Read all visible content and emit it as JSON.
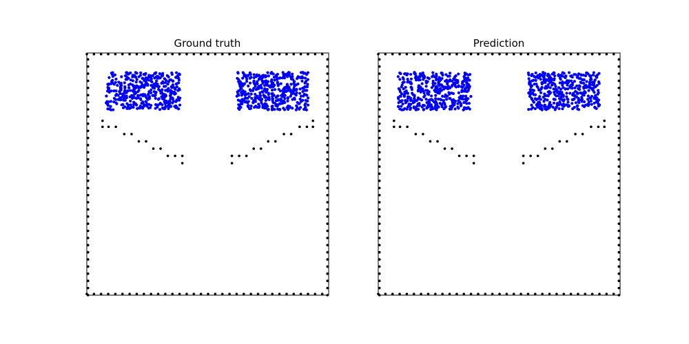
{
  "figure": {
    "background": "#ffffff"
  },
  "chart_data": [
    {
      "type": "scatter",
      "title": "Ground truth",
      "xlabel": "",
      "ylabel": "",
      "xlim": [
        0,
        1
      ],
      "ylim": [
        0,
        1
      ],
      "axes_ticks": false,
      "grid": false,
      "series": [
        {
          "role": "particles",
          "color": "#0000ff",
          "marker": "dot",
          "groups": [
            {
              "xmin": 0.08,
              "xmax": 0.385,
              "ymin": 0.765,
              "ymax": 0.92,
              "count": 420
            },
            {
              "xmin": 0.62,
              "xmax": 0.915,
              "ymin": 0.765,
              "ymax": 0.92,
              "count": 420
            }
          ],
          "seed": 11
        },
        {
          "role": "boundary",
          "color": "#000000",
          "marker": "dot",
          "frame_spacing": 0.0295,
          "walls": [
            {
              "x": [
                0.065,
                0.065,
                0.09,
                0.12,
                0.155,
                0.185,
                0.215,
                0.245,
                0.275,
                0.305,
                0.335,
                0.365,
                0.395,
                0.395
              ],
              "y": [
                0.72,
                0.695,
                0.695,
                0.695,
                0.665,
                0.665,
                0.635,
                0.635,
                0.605,
                0.605,
                0.575,
                0.575,
                0.575,
                0.545
              ]
            },
            {
              "x": [
                0.6,
                0.6,
                0.63,
                0.66,
                0.69,
                0.72,
                0.75,
                0.78,
                0.815,
                0.845,
                0.88,
                0.91,
                0.935,
                0.935
              ],
              "y": [
                0.545,
                0.575,
                0.575,
                0.575,
                0.605,
                0.605,
                0.635,
                0.635,
                0.665,
                0.665,
                0.695,
                0.695,
                0.695,
                0.72
              ]
            }
          ]
        }
      ]
    },
    {
      "type": "scatter",
      "title": "Prediction",
      "xlabel": "",
      "ylabel": "",
      "xlim": [
        0,
        1
      ],
      "ylim": [
        0,
        1
      ],
      "axes_ticks": false,
      "grid": false,
      "series": [
        {
          "role": "particles",
          "color": "#0000ff",
          "marker": "dot",
          "groups": [
            {
              "xmin": 0.08,
              "xmax": 0.385,
              "ymin": 0.765,
              "ymax": 0.92,
              "count": 420
            },
            {
              "xmin": 0.62,
              "xmax": 0.915,
              "ymin": 0.765,
              "ymax": 0.92,
              "count": 420
            }
          ],
          "seed": 29
        },
        {
          "role": "boundary",
          "color": "#000000",
          "marker": "dot",
          "frame_spacing": 0.0295,
          "walls": [
            {
              "x": [
                0.065,
                0.065,
                0.09,
                0.12,
                0.155,
                0.185,
                0.215,
                0.245,
                0.275,
                0.305,
                0.335,
                0.365,
                0.395,
                0.395
              ],
              "y": [
                0.72,
                0.695,
                0.695,
                0.695,
                0.665,
                0.665,
                0.635,
                0.635,
                0.605,
                0.605,
                0.575,
                0.575,
                0.575,
                0.545
              ]
            },
            {
              "x": [
                0.6,
                0.6,
                0.63,
                0.66,
                0.69,
                0.72,
                0.75,
                0.78,
                0.815,
                0.845,
                0.88,
                0.91,
                0.935,
                0.935
              ],
              "y": [
                0.545,
                0.575,
                0.575,
                0.575,
                0.605,
                0.605,
                0.635,
                0.635,
                0.665,
                0.665,
                0.695,
                0.695,
                0.695,
                0.72
              ]
            }
          ]
        }
      ]
    }
  ]
}
